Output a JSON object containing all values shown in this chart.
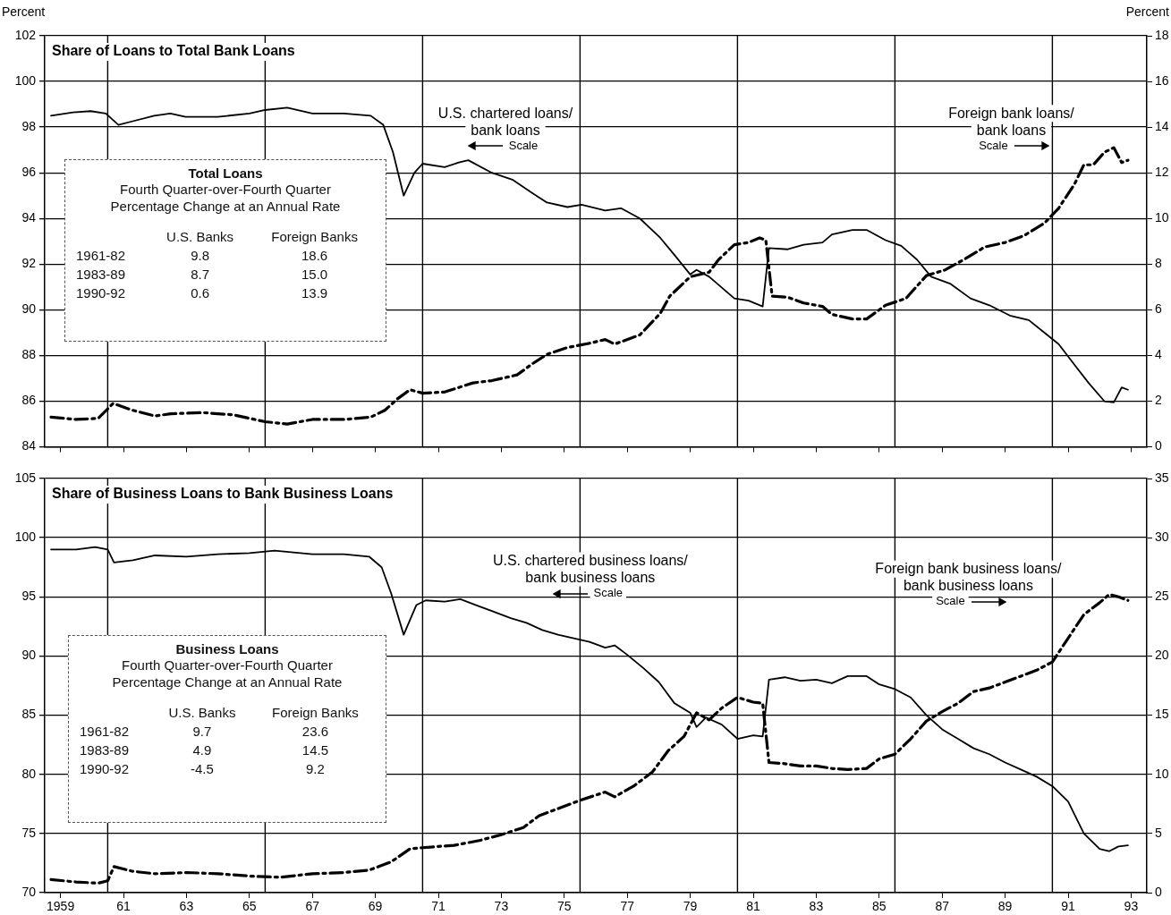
{
  "chart_data": [
    {
      "type": "line",
      "title": "Share of Loans to Total Bank Loans",
      "ylabel": "Percent",
      "y2label": "Percent",
      "xlim": [
        1958.5,
        1993.5
      ],
      "xticks": [
        {
          "value": 1959,
          "label": null
        },
        {
          "value": 1961,
          "label": null
        },
        {
          "value": 1963,
          "label": null
        },
        {
          "value": 1965,
          "label": null
        },
        {
          "value": 1967,
          "label": null
        },
        {
          "value": 1969,
          "label": null
        },
        {
          "value": 1971,
          "label": null
        },
        {
          "value": 1973,
          "label": null
        },
        {
          "value": 1975,
          "label": null
        },
        {
          "value": 1977,
          "label": null
        },
        {
          "value": 1979,
          "label": null
        },
        {
          "value": 1981,
          "label": null
        },
        {
          "value": 1983,
          "label": null
        },
        {
          "value": 1985,
          "label": null
        },
        {
          "value": 1987,
          "label": null
        },
        {
          "value": 1989,
          "label": null
        },
        {
          "value": 1991,
          "label": null
        },
        {
          "value": 1993,
          "label": null
        }
      ],
      "ylim": [
        84,
        102
      ],
      "yticks": [
        84,
        86,
        88,
        90,
        92,
        94,
        96,
        98,
        100,
        102
      ],
      "y2lim": [
        0,
        18
      ],
      "y2ticks": [
        0,
        2,
        4,
        6,
        8,
        10,
        12,
        14,
        16,
        18
      ],
      "grid": "y",
      "legend": false,
      "tick_labels": "y",
      "marker": "none",
      "ref_lines": [
        {
          "axis": "x",
          "value": 1960.5
        },
        {
          "axis": "x",
          "value": 1965.5
        },
        {
          "axis": "x",
          "value": 1970.5
        },
        {
          "axis": "x",
          "value": 1975.5
        },
        {
          "axis": "x",
          "value": 1980.5
        },
        {
          "axis": "x",
          "value": 1985.5
        },
        {
          "axis": "x",
          "value": 1990.5
        }
      ],
      "annotations": [
        "Scale",
        "Scale"
      ],
      "series": [
        {
          "name": "U.S. chartered loans/bank loans",
          "color": "#000000",
          "line_style": "solid",
          "x": [
            1958.7,
            1959.4,
            1959.96,
            1960.44,
            1960.84,
            1961.27,
            1961.98,
            1962.49,
            1962.97,
            1964.0,
            1965.0,
            1965.5,
            1966.2,
            1967.0,
            1968.0,
            1968.85,
            1969.25,
            1969.56,
            1969.9,
            1970.24,
            1970.5,
            1971.2,
            1971.65,
            1971.95,
            1972.7,
            1973.35,
            1974.0,
            1974.45,
            1975.1,
            1975.55,
            1976.3,
            1976.8,
            1977.4,
            1978.05,
            1978.5,
            1979.0,
            1979.2,
            1979.6,
            1980.4,
            1980.85,
            1981.3,
            1981.5,
            1982.1,
            1982.6,
            1983.2,
            1983.5,
            1984.15,
            1984.6,
            1985.2,
            1985.7,
            1986.2,
            1986.65,
            1987.25,
            1987.9,
            1988.5,
            1989.15,
            1989.75,
            1990.25,
            1990.7,
            1991.2,
            1991.65,
            1992.15,
            1992.45,
            1992.7,
            1992.9
          ],
          "values": [
            98.5,
            98.65,
            98.7,
            98.6,
            98.1,
            98.25,
            98.5,
            98.6,
            98.45,
            98.45,
            98.6,
            98.75,
            98.85,
            98.6,
            98.6,
            98.5,
            98.1,
            96.9,
            95.0,
            96.0,
            96.4,
            96.25,
            96.45,
            96.55,
            96.0,
            95.7,
            95.1,
            94.7,
            94.5,
            94.6,
            94.35,
            94.45,
            94.0,
            93.15,
            92.4,
            91.55,
            91.75,
            91.45,
            90.5,
            90.4,
            90.15,
            92.7,
            92.65,
            92.85,
            92.95,
            93.3,
            93.5,
            93.5,
            93.05,
            92.8,
            92.2,
            91.45,
            91.15,
            90.5,
            90.2,
            89.75,
            89.55,
            89.0,
            88.5,
            87.6,
            86.8,
            86.0,
            85.95,
            86.6,
            86.5
          ]
        },
        {
          "name": "Foreign bank loans/bank loans",
          "color": "#000000",
          "line_style": "dashed",
          "axis": "y2",
          "x": [
            1958.7,
            1959.5,
            1960.2,
            1960.67,
            1961.3,
            1962.0,
            1962.5,
            1963.5,
            1964.5,
            1965.5,
            1966.2,
            1967.0,
            1968.0,
            1968.85,
            1969.3,
            1969.7,
            1970.1,
            1970.5,
            1971.2,
            1971.65,
            1972.1,
            1972.7,
            1973.5,
            1974.0,
            1974.45,
            1975.1,
            1975.85,
            1976.3,
            1976.6,
            1977.4,
            1978.05,
            1978.35,
            1979.0,
            1979.6,
            1979.9,
            1980.4,
            1980.85,
            1981.2,
            1981.4,
            1981.6,
            1982.1,
            1982.6,
            1983.2,
            1983.5,
            1984.15,
            1984.6,
            1985.2,
            1985.85,
            1986.5,
            1987.1,
            1987.75,
            1988.35,
            1989.0,
            1989.6,
            1990.25,
            1990.7,
            1991.2,
            1991.5,
            1991.8,
            1992.15,
            1992.45,
            1992.7,
            1992.9
          ],
          "values": [
            1.3,
            1.2,
            1.25,
            1.9,
            1.6,
            1.35,
            1.45,
            1.5,
            1.4,
            1.1,
            1.0,
            1.2,
            1.2,
            1.3,
            1.6,
            2.1,
            2.5,
            2.35,
            2.4,
            2.6,
            2.8,
            2.9,
            3.15,
            3.65,
            4.05,
            4.35,
            4.55,
            4.7,
            4.5,
            4.9,
            5.85,
            6.6,
            7.45,
            7.65,
            8.2,
            8.85,
            8.95,
            9.15,
            9.05,
            6.6,
            6.55,
            6.3,
            6.15,
            5.8,
            5.6,
            5.6,
            6.2,
            6.5,
            7.5,
            7.75,
            8.25,
            8.75,
            8.95,
            9.25,
            9.8,
            10.45,
            11.5,
            12.35,
            12.35,
            12.9,
            13.1,
            12.45,
            12.55
          ]
        }
      ]
    },
    {
      "type": "other",
      "title": "Total Loans",
      "subtitle": "Fourth Quarter-over-Fourth Quarter\nPercentage Change at an Annual Rate",
      "categories": [
        "1961-82",
        "1983-89",
        "1990-92"
      ],
      "data_labels": true,
      "series": [
        {
          "name": "U.S. Banks",
          "values": [
            9.8,
            8.7,
            0.6
          ]
        },
        {
          "name": "Foreign Banks",
          "values": [
            18.6,
            15.0,
            13.9
          ],
          "value_labels": [
            "18.6",
            "15.0",
            "13.9"
          ]
        }
      ]
    },
    {
      "type": "line",
      "title": "Share of Business Loans to Bank Business Loans",
      "xlim": [
        1958.5,
        1993.5
      ],
      "xticks": [
        {
          "value": 1959,
          "label": "1959"
        },
        {
          "value": 1961,
          "label": "61"
        },
        {
          "value": 1963,
          "label": "63"
        },
        {
          "value": 1965,
          "label": "65"
        },
        {
          "value": 1967,
          "label": "67"
        },
        {
          "value": 1969,
          "label": "69"
        },
        {
          "value": 1971,
          "label": "71"
        },
        {
          "value": 1973,
          "label": "73"
        },
        {
          "value": 1975,
          "label": "75"
        },
        {
          "value": 1977,
          "label": "77"
        },
        {
          "value": 1979,
          "label": "79"
        },
        {
          "value": 1981,
          "label": "81"
        },
        {
          "value": 1983,
          "label": "83"
        },
        {
          "value": 1985,
          "label": "85"
        },
        {
          "value": 1987,
          "label": "87"
        },
        {
          "value": 1989,
          "label": "89"
        },
        {
          "value": 1991,
          "label": "91"
        },
        {
          "value": 1993,
          "label": "93"
        }
      ],
      "ylim": [
        70,
        105
      ],
      "yticks": [
        70,
        75,
        80,
        85,
        90,
        95,
        100,
        105
      ],
      "y2lim": [
        0,
        35
      ],
      "y2ticks": [
        0,
        5,
        10,
        15,
        20,
        25,
        30,
        35
      ],
      "grid": "y",
      "legend": false,
      "marker": "none",
      "ref_lines": [
        {
          "axis": "x",
          "value": 1960.5
        },
        {
          "axis": "x",
          "value": 1965.5
        },
        {
          "axis": "x",
          "value": 1970.5
        },
        {
          "axis": "x",
          "value": 1975.5
        },
        {
          "axis": "x",
          "value": 1980.5
        },
        {
          "axis": "x",
          "value": 1985.5
        },
        {
          "axis": "x",
          "value": 1990.5
        }
      ],
      "annotations": [
        "Scale",
        "Scale"
      ],
      "series": [
        {
          "name": "U.S. chartered business loans/bank business loans",
          "color": "#000000",
          "line_style": "solid",
          "x": [
            1958.7,
            1959.5,
            1960.1,
            1960.5,
            1960.7,
            1961.3,
            1962,
            1963,
            1964,
            1965,
            1965.8,
            1967,
            1968,
            1968.8,
            1969.2,
            1969.5,
            1969.9,
            1970.3,
            1970.6,
            1971.2,
            1971.7,
            1972.2,
            1972.7,
            1973.3,
            1973.8,
            1974.3,
            1974.8,
            1975.3,
            1975.8,
            1976.3,
            1976.6,
            1977,
            1977.5,
            1978,
            1978.5,
            1979,
            1979.2,
            1979.5,
            1980,
            1980.5,
            1981,
            1981.3,
            1981.5,
            1982,
            1982.5,
            1983,
            1983.5,
            1984,
            1984.6,
            1985,
            1985.5,
            1986,
            1986.5,
            1987,
            1987.5,
            1988,
            1988.5,
            1989,
            1989.5,
            1990,
            1990.5,
            1991,
            1991.5,
            1992,
            1992.3,
            1992.6,
            1992.9
          ],
          "values": [
            99.0,
            99.0,
            99.2,
            99.0,
            97.9,
            98.1,
            98.5,
            98.4,
            98.6,
            98.7,
            98.9,
            98.6,
            98.6,
            98.4,
            97.5,
            95.3,
            91.8,
            94.3,
            94.7,
            94.6,
            94.8,
            94.3,
            93.8,
            93.2,
            92.8,
            92.2,
            91.8,
            91.5,
            91.2,
            90.7,
            90.9,
            90.1,
            89.0,
            87.8,
            86.0,
            85.2,
            84.0,
            84.8,
            84.2,
            83.0,
            83.3,
            83.2,
            88.0,
            88.2,
            87.9,
            88.0,
            87.7,
            88.3,
            88.3,
            87.6,
            87.2,
            86.5,
            85.0,
            83.8,
            83.0,
            82.2,
            81.7,
            81.0,
            80.4,
            79.8,
            79.0,
            77.7,
            75.0,
            73.7,
            73.5,
            73.9,
            74.0
          ]
        },
        {
          "name": "Foreign bank business loans/bank business loans",
          "color": "#000000",
          "line_style": "dashed",
          "axis": "y2",
          "x": [
            1958.7,
            1959.5,
            1960.2,
            1960.5,
            1960.7,
            1961.3,
            1962,
            1963,
            1964,
            1965,
            1966,
            1967,
            1968,
            1968.8,
            1969.5,
            1970.1,
            1970.5,
            1971.5,
            1972.3,
            1973,
            1973.7,
            1974.2,
            1974.8,
            1975.5,
            1976.3,
            1976.6,
            1977.2,
            1977.8,
            1978.3,
            1978.8,
            1979.2,
            1979.6,
            1980,
            1980.5,
            1981,
            1981.3,
            1981.5,
            1982,
            1982.5,
            1983,
            1983.5,
            1984,
            1984.6,
            1985,
            1985.5,
            1986,
            1986.5,
            1987,
            1987.5,
            1988,
            1988.5,
            1989,
            1989.5,
            1990,
            1990.5,
            1991,
            1991.5,
            1992,
            1992.3,
            1992.6,
            1992.9
          ],
          "values": [
            1.1,
            0.9,
            0.8,
            1.0,
            2.2,
            1.8,
            1.6,
            1.7,
            1.6,
            1.4,
            1.3,
            1.6,
            1.7,
            1.9,
            2.6,
            3.7,
            3.8,
            4.0,
            4.4,
            4.9,
            5.5,
            6.5,
            7.1,
            7.8,
            8.5,
            8.1,
            9.0,
            10.2,
            12.0,
            13.2,
            15.2,
            14.6,
            15.6,
            16.5,
            16.1,
            16.0,
            11.0,
            10.9,
            10.7,
            10.7,
            10.5,
            10.4,
            10.5,
            11.3,
            11.7,
            13.0,
            14.5,
            15.3,
            16.0,
            17.0,
            17.3,
            17.8,
            18.3,
            18.8,
            19.5,
            21.5,
            23.5,
            24.5,
            25.2,
            25.0,
            24.7
          ]
        }
      ]
    },
    {
      "type": "other",
      "title": "Business Loans",
      "subtitle": "Fourth Quarter-over-Fourth Quarter\nPercentage Change at an Annual Rate",
      "categories": [
        "1961-82",
        "1983-89",
        "1990-92"
      ],
      "data_labels": true,
      "series": [
        {
          "name": "U.S. Banks",
          "values": [
            9.7,
            4.9,
            -4.5
          ]
        },
        {
          "name": "Foreign Banks",
          "values": [
            23.6,
            14.5,
            9.2
          ]
        }
      ]
    }
  ]
}
